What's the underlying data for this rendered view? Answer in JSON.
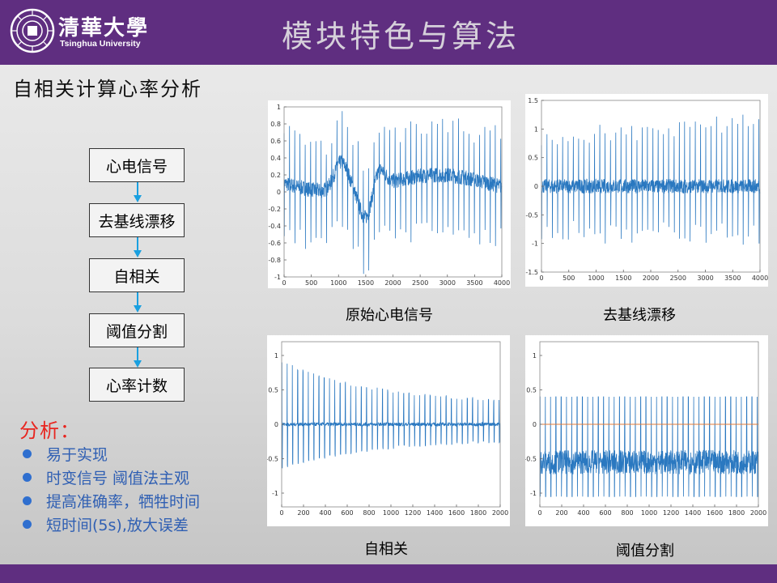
{
  "header": {
    "logo_cn": "清華大學",
    "logo_en": "Tsinghua University",
    "title": "模块特色与算法"
  },
  "subtitle": "自相关计算心率分析",
  "flow": [
    "心电信号",
    "去基线漂移",
    "自相关",
    "阈值分割",
    "心率计数"
  ],
  "analysis": {
    "title": "分析：",
    "items": [
      "易于实现",
      "时变信号 阈值法主观",
      "提高准确率，牺牲时间",
      "短时间(5s),放大误差"
    ]
  },
  "colors": {
    "header": "#5f2e80",
    "signal": "#2a78c0",
    "threshold": "#e07b39",
    "analysis_title": "#e8251f",
    "bullet_text": "#2f5fb3"
  },
  "plots": [
    {
      "caption": "原始心电信号",
      "xticks": [
        "0",
        "500",
        "1000",
        "1500",
        "2000",
        "2500",
        "3000",
        "3500",
        "4000"
      ],
      "yticks": [
        "1",
        "0.8",
        "0.6",
        "0.4",
        "0.2",
        "0",
        "-0.2",
        "-0.4",
        "-0.6",
        "-0.8",
        "-1"
      ]
    },
    {
      "caption": "去基线漂移",
      "xticks": [
        "0",
        "500",
        "1000",
        "1500",
        "2000",
        "2500",
        "3000",
        "3500",
        "4000"
      ],
      "yticks": [
        "1.5",
        "1",
        "0.5",
        "0",
        "-0.5",
        "-1",
        "-1.5"
      ]
    },
    {
      "caption": "自相关",
      "xticks": [
        "0",
        "200",
        "400",
        "600",
        "800",
        "1000",
        "1200",
        "1400",
        "1600",
        "1800",
        "2000"
      ],
      "yticks": [
        "1",
        "0.5",
        "0",
        "-0.5",
        "-1"
      ]
    },
    {
      "caption": "阈值分割",
      "xticks": [
        "0",
        "200",
        "400",
        "600",
        "800",
        "1000",
        "1200",
        "1400",
        "1600",
        "1800",
        "2000"
      ],
      "yticks": [
        "1",
        "0.5",
        "0",
        "-0.5",
        "-1"
      ]
    }
  ],
  "chart_data": [
    {
      "type": "line",
      "title": "",
      "xlim": [
        0,
        4000
      ],
      "ylim": [
        -1,
        1
      ],
      "series": [
        {
          "description": "raw ECG with baseline wander",
          "beats_approx": 41
        }
      ]
    },
    {
      "type": "line",
      "title": "",
      "xlim": [
        0,
        4000
      ],
      "ylim": [
        -1.5,
        1.5
      ],
      "series": [
        {
          "description": "ECG after baseline removal",
          "beats_approx": 41
        }
      ]
    },
    {
      "type": "line",
      "title": "",
      "xlim": [
        0,
        2000
      ],
      "ylim": [
        -1,
        1
      ],
      "series": [
        {
          "description": "autocorrelation, peak at 0 decaying",
          "peaks_approx": 41
        }
      ]
    },
    {
      "type": "line",
      "title": "",
      "xlim": [
        0,
        2000
      ],
      "ylim": [
        -1,
        1
      ],
      "series": [
        {
          "description": "threshold segmented signal",
          "pulse_level": 0.4
        },
        {
          "description": "threshold line",
          "value": 0
        }
      ]
    }
  ]
}
